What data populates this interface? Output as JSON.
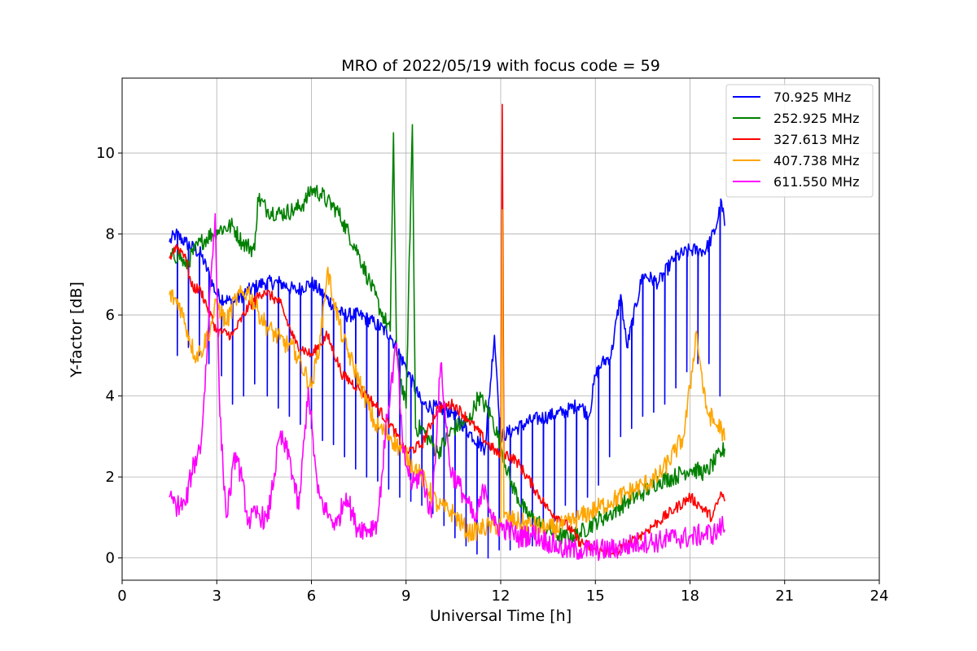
{
  "chart_data": {
    "type": "line",
    "title": "MRO of 2022/05/19 with focus code = 59",
    "xlabel": "Universal Time [h]",
    "ylabel": "Y-factor [dB]",
    "xlim": [
      0,
      24
    ],
    "ylim": [
      -0.55,
      11.85
    ],
    "xticks": [
      0,
      3,
      6,
      9,
      12,
      15,
      18,
      21,
      24
    ],
    "yticks": [
      0,
      2,
      4,
      6,
      8,
      10
    ],
    "grid": true,
    "legend_position": "top-right",
    "series": [
      {
        "name": "70.925 MHz",
        "color": "#0000ff",
        "x": [
          1.5,
          1.7,
          2.0,
          2.5,
          3.0,
          3.5,
          4.0,
          4.5,
          5.0,
          5.5,
          6.0,
          6.5,
          7.0,
          7.5,
          8.0,
          8.5,
          9.0,
          9.5,
          10.0,
          10.5,
          11.0,
          11.5,
          11.8,
          12.0,
          12.5,
          13.0,
          13.5,
          14.0,
          14.5,
          14.8,
          15.0,
          15.2,
          15.5,
          15.8,
          16.0,
          16.5,
          17.0,
          17.5,
          18.0,
          18.5,
          18.8,
          19.0,
          19.1
        ],
        "y": [
          7.8,
          8.0,
          7.8,
          7.5,
          6.5,
          6.3,
          6.6,
          6.8,
          6.8,
          6.6,
          6.8,
          6.4,
          6.0,
          6.0,
          5.8,
          5.5,
          4.7,
          3.8,
          3.7,
          3.6,
          3.1,
          2.7,
          5.5,
          3.0,
          3.2,
          3.4,
          3.5,
          3.6,
          3.8,
          3.5,
          4.5,
          4.8,
          5.0,
          6.5,
          5.2,
          7.0,
          6.8,
          7.4,
          7.6,
          7.6,
          8.1,
          8.8,
          8.2
        ],
        "dips": [
          [
            1.75,
            5.0
          ],
          [
            2.1,
            5.2
          ],
          [
            2.45,
            5.0
          ],
          [
            2.75,
            4.8
          ],
          [
            3.15,
            4.5
          ],
          [
            3.5,
            3.8
          ],
          [
            3.85,
            4.0
          ],
          [
            4.2,
            4.3
          ],
          [
            4.6,
            4.0
          ],
          [
            4.95,
            3.7
          ],
          [
            5.3,
            3.5
          ],
          [
            5.65,
            3.3
          ],
          [
            6.0,
            3.2
          ],
          [
            6.35,
            2.9
          ],
          [
            6.7,
            2.8
          ],
          [
            7.05,
            2.5
          ],
          [
            7.4,
            2.2
          ],
          [
            7.75,
            2.0
          ],
          [
            8.1,
            1.9
          ],
          [
            8.45,
            1.7
          ],
          [
            8.8,
            1.5
          ],
          [
            9.15,
            1.4
          ],
          [
            9.5,
            1.3
          ],
          [
            9.85,
            1.1
          ],
          [
            10.2,
            0.8
          ],
          [
            10.55,
            0.5
          ],
          [
            10.9,
            0.3
          ],
          [
            11.25,
            0.1
          ],
          [
            11.6,
            0.0
          ],
          [
            11.95,
            0.2
          ],
          [
            12.3,
            0.2
          ],
          [
            12.65,
            0.5
          ],
          [
            13.0,
            0.3
          ],
          [
            13.35,
            0.7
          ],
          [
            13.7,
            0.9
          ],
          [
            14.05,
            1.3
          ],
          [
            14.4,
            1.0
          ],
          [
            14.75,
            1.5
          ],
          [
            15.1,
            1.8
          ],
          [
            15.45,
            2.5
          ],
          [
            15.8,
            3.0
          ],
          [
            16.15,
            3.2
          ],
          [
            16.5,
            3.5
          ],
          [
            16.85,
            3.6
          ],
          [
            17.2,
            3.8
          ],
          [
            17.55,
            4.2
          ],
          [
            17.9,
            4.6
          ],
          [
            18.25,
            4.8
          ],
          [
            18.6,
            4.8
          ],
          [
            18.95,
            4.0
          ]
        ]
      },
      {
        "name": "252.925 MHz",
        "color": "#008000",
        "x": [
          1.5,
          1.8,
          2.0,
          2.3,
          2.5,
          3.0,
          3.5,
          3.8,
          4.2,
          4.3,
          4.6,
          5.0,
          5.5,
          5.8,
          6.0,
          6.3,
          6.5,
          6.8,
          7.0,
          7.5,
          7.8,
          8.2,
          8.5,
          8.6,
          8.7,
          9.0,
          9.2,
          9.3,
          9.5,
          10.0,
          10.5,
          11.0,
          11.3,
          11.7,
          12.0,
          12.3,
          12.8,
          13.5,
          14.0,
          14.5,
          15.0,
          15.5,
          16.0,
          16.5,
          17.0,
          17.5,
          18.0,
          18.5,
          19.0,
          19.1
        ],
        "y": [
          7.4,
          7.5,
          7.2,
          7.6,
          7.8,
          8.1,
          8.2,
          7.8,
          7.6,
          8.9,
          8.6,
          8.5,
          8.6,
          8.8,
          9.1,
          9.0,
          8.8,
          8.6,
          8.3,
          7.5,
          6.9,
          6.1,
          5.6,
          10.5,
          5.0,
          3.7,
          10.7,
          3.2,
          3.2,
          2.6,
          3.2,
          3.4,
          4.0,
          3.5,
          2.8,
          1.9,
          1.1,
          0.7,
          0.5,
          0.6,
          0.9,
          1.1,
          1.4,
          1.6,
          1.9,
          2.0,
          2.2,
          2.1,
          2.6,
          2.7
        ]
      },
      {
        "name": "327.613 MHz",
        "color": "#ff0000",
        "x": [
          1.5,
          1.7,
          2.0,
          2.2,
          2.5,
          3.0,
          3.5,
          4.0,
          4.5,
          5.0,
          5.5,
          6.0,
          6.5,
          7.0,
          7.5,
          8.0,
          8.5,
          9.0,
          9.5,
          10.0,
          10.5,
          11.0,
          11.5,
          12.0,
          12.05,
          12.1,
          12.5,
          13.0,
          13.5,
          14.0,
          14.5,
          15.0,
          15.5,
          16.0,
          16.5,
          17.0,
          17.5,
          18.0,
          18.3,
          18.7,
          19.0,
          19.1
        ],
        "y": [
          7.4,
          7.7,
          7.5,
          6.7,
          6.6,
          5.6,
          5.5,
          6.2,
          6.6,
          6.3,
          5.3,
          5.0,
          5.5,
          4.5,
          4.2,
          3.8,
          3.3,
          2.6,
          2.8,
          3.7,
          3.8,
          3.4,
          2.9,
          2.5,
          11.2,
          2.6,
          2.4,
          1.8,
          1.2,
          0.9,
          0.4,
          0.2,
          0.1,
          0.3,
          0.6,
          0.9,
          1.2,
          1.5,
          1.3,
          1.0,
          1.6,
          1.4
        ]
      },
      {
        "name": "407.738 MHz",
        "color": "#ffa500",
        "x": [
          1.5,
          1.8,
          2.0,
          2.3,
          2.5,
          2.8,
          3.0,
          3.3,
          3.6,
          4.0,
          4.3,
          4.6,
          5.0,
          5.5,
          6.0,
          6.3,
          6.5,
          6.7,
          7.0,
          7.5,
          8.0,
          8.5,
          9.0,
          9.5,
          10.0,
          10.5,
          11.0,
          11.3,
          11.7,
          12.0,
          12.05,
          12.1,
          12.5,
          13.0,
          13.5,
          14.0,
          14.5,
          15.0,
          15.5,
          16.0,
          16.5,
          17.0,
          17.5,
          17.8,
          18.0,
          18.2,
          18.5,
          18.8,
          19.0,
          19.1
        ],
        "y": [
          6.5,
          6.3,
          5.8,
          5.0,
          5.1,
          5.7,
          6.3,
          5.8,
          6.4,
          6.6,
          6.1,
          5.7,
          5.4,
          5.1,
          4.2,
          5.5,
          7.1,
          6.4,
          5.4,
          4.4,
          3.3,
          3.0,
          2.5,
          2.0,
          1.3,
          1.1,
          0.6,
          0.7,
          0.8,
          0.8,
          8.6,
          1.0,
          0.9,
          0.8,
          0.7,
          0.8,
          1.0,
          1.2,
          1.4,
          1.6,
          1.8,
          2.0,
          2.6,
          3.0,
          4.2,
          5.6,
          3.7,
          3.3,
          3.2,
          2.9
        ]
      },
      {
        "name": "611.550 MHz",
        "color": "#ff00ff",
        "x": [
          1.5,
          1.7,
          2.0,
          2.2,
          2.4,
          2.5,
          2.7,
          2.8,
          2.95,
          3.1,
          3.3,
          3.6,
          3.8,
          4.0,
          4.3,
          4.6,
          5.0,
          5.3,
          5.6,
          5.9,
          6.2,
          6.5,
          6.8,
          7.1,
          7.4,
          7.8,
          8.1,
          8.4,
          8.7,
          8.9,
          9.2,
          9.5,
          9.8,
          10.1,
          10.4,
          10.8,
          11.2,
          11.5,
          11.8,
          12.2,
          12.6,
          13.0,
          13.5,
          14.0,
          14.5,
          15.0,
          15.5,
          16.0,
          16.5,
          17.0,
          17.5,
          18.0,
          18.5,
          18.8,
          19.0,
          19.1
        ],
        "y": [
          1.5,
          1.3,
          1.3,
          2.1,
          2.6,
          2.8,
          5.2,
          6.8,
          8.5,
          3.5,
          1.0,
          2.6,
          1.9,
          0.9,
          1.1,
          0.9,
          3.0,
          2.5,
          1.2,
          4.2,
          1.6,
          1.1,
          0.8,
          1.6,
          0.8,
          0.7,
          0.9,
          3.5,
          5.3,
          2.6,
          1.8,
          2.1,
          1.0,
          4.8,
          2.2,
          1.6,
          0.9,
          1.8,
          0.8,
          0.7,
          0.5,
          0.6,
          0.4,
          0.2,
          0.2,
          0.2,
          0.2,
          0.3,
          0.4,
          0.4,
          0.5,
          0.5,
          0.6,
          0.6,
          0.8,
          0.7
        ]
      }
    ]
  }
}
